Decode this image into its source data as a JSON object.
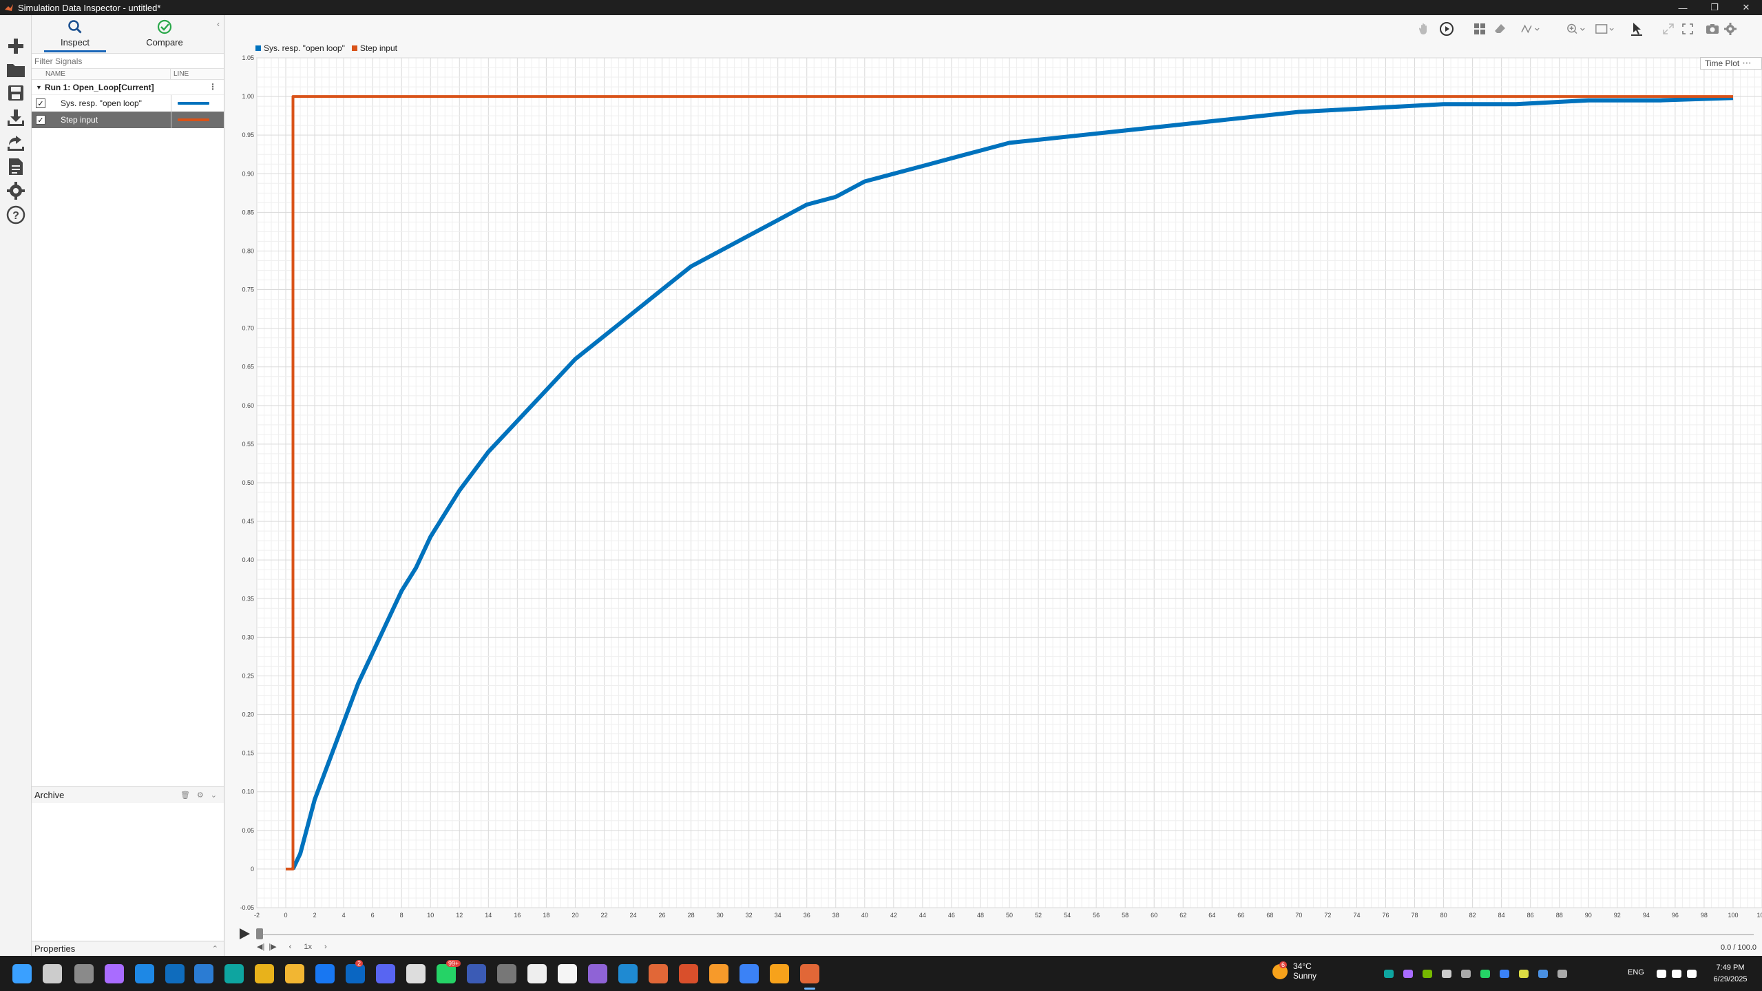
{
  "window": {
    "title": "Simulation Data Inspector - untitled*",
    "controls": [
      "—",
      "❐",
      "✕"
    ]
  },
  "tabs": [
    {
      "label": "Inspect",
      "icon": "search-icon",
      "active": true
    },
    {
      "label": "Compare",
      "icon": "check-circle-icon",
      "active": false
    }
  ],
  "filter": {
    "placeholder": "Filter Signals"
  },
  "columns": {
    "name": "NAME",
    "line": "LINE"
  },
  "run": {
    "label": "Run 1: Open_Loop[Current]"
  },
  "signals": [
    {
      "name": "Sys. resp. \"open loop\"",
      "checked": true,
      "selected": false,
      "color": "#0072BD"
    },
    {
      "name": "Step input",
      "checked": true,
      "selected": true,
      "color": "#D95319"
    }
  ],
  "archive": {
    "title": "Archive"
  },
  "properties": {
    "title": "Properties"
  },
  "plot": {
    "legend": [
      {
        "label": "Sys. resp. \"open loop\"",
        "color": "#0072BD"
      },
      {
        "label": "Step input",
        "color": "#D95319"
      }
    ],
    "view_label": "Time Plot",
    "view_menu": "• • •"
  },
  "chart_data": {
    "type": "line",
    "title": "",
    "xlabel": "",
    "ylabel": "",
    "xlim": [
      -2,
      102
    ],
    "ylim": [
      -0.05,
      1.05
    ],
    "x_ticks": [
      -2,
      0,
      2,
      4,
      6,
      8,
      10,
      12,
      14,
      16,
      18,
      20,
      22,
      24,
      26,
      28,
      30,
      32,
      34,
      36,
      38,
      40,
      42,
      44,
      46,
      48,
      50,
      52,
      54,
      56,
      58,
      60,
      62,
      64,
      66,
      68,
      70,
      72,
      74,
      76,
      78,
      80,
      82,
      84,
      86,
      88,
      90,
      92,
      94,
      96,
      98,
      100,
      102
    ],
    "y_ticks": [
      -0.05,
      0,
      0.05,
      0.1,
      0.15,
      0.2,
      0.25,
      0.3,
      0.35,
      0.4,
      0.45,
      0.5,
      0.55,
      0.6,
      0.65,
      0.7,
      0.75,
      0.8,
      0.85,
      0.9,
      0.95,
      1.0,
      1.05
    ],
    "grid": true,
    "series": [
      {
        "name": "Sys. resp. \"open loop\"",
        "color": "#0072BD",
        "x": [
          0.5,
          1,
          2,
          3,
          4,
          5,
          6,
          7,
          8,
          9,
          10,
          12,
          14,
          16,
          18,
          20,
          22,
          24,
          26,
          28,
          30,
          32,
          34,
          36,
          38,
          40,
          42,
          44,
          46,
          48,
          50,
          55,
          60,
          65,
          70,
          75,
          80,
          85,
          90,
          95,
          100
        ],
        "y": [
          0,
          0.02,
          0.09,
          0.14,
          0.19,
          0.24,
          0.28,
          0.32,
          0.36,
          0.39,
          0.43,
          0.49,
          0.54,
          0.58,
          0.62,
          0.66,
          0.69,
          0.72,
          0.75,
          0.78,
          0.8,
          0.82,
          0.84,
          0.86,
          0.87,
          0.89,
          0.9,
          0.91,
          0.92,
          0.93,
          0.94,
          0.95,
          0.96,
          0.97,
          0.98,
          0.985,
          0.99,
          0.99,
          0.995,
          0.995,
          0.998
        ]
      },
      {
        "name": "Step input",
        "color": "#D95319",
        "x": [
          0,
          0.5,
          0.5,
          100
        ],
        "y": [
          0,
          0,
          1,
          1
        ]
      }
    ]
  },
  "playback": {
    "speed": "1x",
    "time": "0.0 / 100.0"
  },
  "taskbar": {
    "weather_temp": "34°C",
    "weather_text": "Sunny",
    "weather_badge": "6",
    "lang": "ENG",
    "time": "7:49 PM",
    "date": "6/29/2025",
    "badge_linkedin": "2",
    "badge_whatsapp": "99+"
  }
}
